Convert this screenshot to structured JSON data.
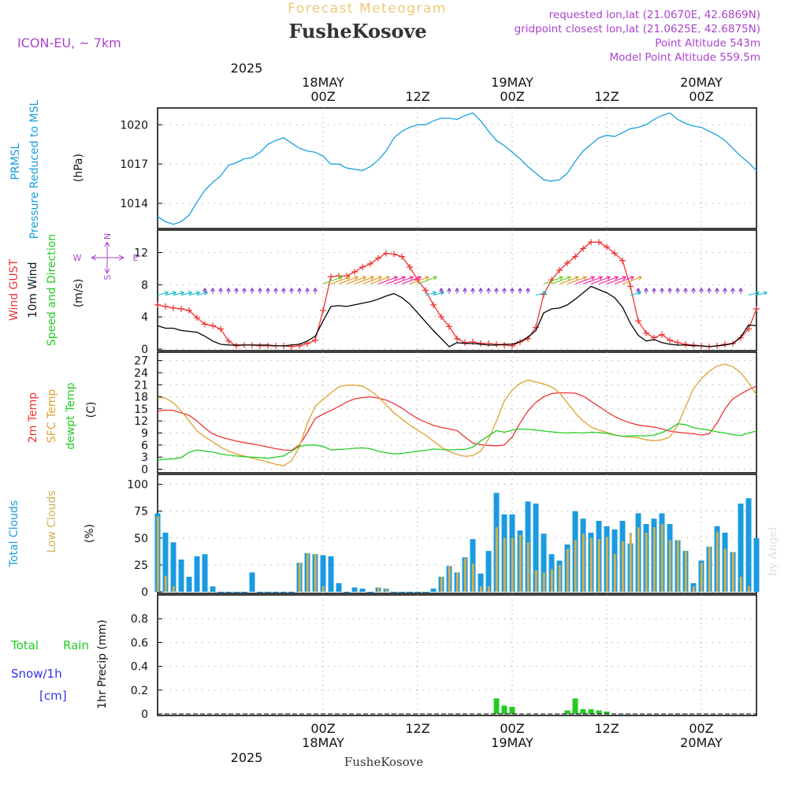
{
  "header": {
    "title": "Forecast Meteogram",
    "location": "FusheKosove",
    "model": "ICON-EU, ~ 7km",
    "requested": "requested lon,lat (21.0670E, 42.6869N)",
    "gridpoint": "gridpoint closest lon,lat (21.0625E, 42.6875N)",
    "point_altitude": "Point Altitude 543m",
    "model_altitude": "Model Point Altitude 559.5m",
    "credit": "by Angel",
    "footer": "FusheKosove"
  },
  "time_axis": {
    "year": "2025",
    "ticks": [
      {
        "hour": 21,
        "label": "00Z",
        "date": "18MAY"
      },
      {
        "hour": 33,
        "label": "12Z",
        "date": ""
      },
      {
        "hour": 45,
        "label": "00Z",
        "date": "19MAY"
      },
      {
        "hour": 57,
        "label": "12Z",
        "date": ""
      },
      {
        "hour": 69,
        "label": "00Z",
        "date": "20MAY"
      },
      {
        "hour": 81,
        "label": "12Z",
        "date": ""
      }
    ],
    "range": [
      0,
      76
    ]
  },
  "colors": {
    "pressure": "#1aa0e0",
    "gust": "#ee3333",
    "wind": "#000000",
    "temp2m": "#ee3333",
    "sfc": "#e0a030",
    "dewpt": "#22cc22",
    "total_cloud": "#1a9be0",
    "low_cloud": "#d0b050",
    "rain": "#22cc22",
    "snow": "#3333ee",
    "purple": "#aa44cc"
  },
  "chart_data": [
    {
      "type": "line",
      "name": "pressure",
      "label_lines": [
        "PRMSL",
        "Pressure Reduced to MSL"
      ],
      "unit": "(hPa)",
      "yticks": [
        1014,
        1017,
        1020
      ],
      "ylim": [
        1012.2,
        1021.1
      ],
      "series": [
        {
          "name": "PRMSL",
          "values": [
            1013.0,
            1012.6,
            1012.4,
            1012.6,
            1013.1,
            1014.1,
            1015.0,
            1015.6,
            1016.1,
            1016.9,
            1017.1,
            1017.4,
            1017.5,
            1017.9,
            1018.5,
            1018.8,
            1019.0,
            1018.6,
            1018.2,
            1018.0,
            1017.9,
            1017.6,
            1017.0,
            1017.0,
            1016.7,
            1016.6,
            1016.5,
            1016.8,
            1017.3,
            1018.0,
            1019.0,
            1019.5,
            1019.8,
            1020.0,
            1020.0,
            1020.3,
            1020.5,
            1020.5,
            1020.4,
            1020.7,
            1020.9,
            1020.3,
            1019.5,
            1018.8,
            1018.4,
            1017.9,
            1017.4,
            1016.8,
            1016.3,
            1015.8,
            1015.7,
            1015.8,
            1016.3,
            1017.2,
            1018.0,
            1018.5,
            1019.0,
            1019.2,
            1019.1,
            1019.4,
            1019.7,
            1019.8,
            1020.0,
            1020.4,
            1020.7,
            1020.9,
            1020.4,
            1020.1,
            1019.9,
            1019.8,
            1019.5,
            1019.2,
            1018.8,
            1018.2,
            1017.6,
            1017.1,
            1016.5,
            1016.1,
            1015.7,
            1015.6
          ]
        }
      ]
    },
    {
      "type": "line",
      "name": "wind",
      "label_lines": [
        "Wind GUST",
        "10m Wind",
        "Speed and Direction"
      ],
      "unit": "(m/s)",
      "compass": {
        "n": "N",
        "s": "S",
        "w": "W",
        "e": "E"
      },
      "yticks": [
        0,
        4,
        8,
        12
      ],
      "ylim": [
        0,
        14.5
      ],
      "series": [
        {
          "name": "Wind GUST",
          "values": [
            5.5,
            5.3,
            5.1,
            5.0,
            4.8,
            3.9,
            3.1,
            2.9,
            2.5,
            1.0,
            0.4,
            0.5,
            0.5,
            0.4,
            0.4,
            0.4,
            0.4,
            0.3,
            0.4,
            0.7,
            1.1,
            4.8,
            9.0,
            9.1,
            9.1,
            9.6,
            10.2,
            10.6,
            11.3,
            11.9,
            11.8,
            11.5,
            10.2,
            8.6,
            7.3,
            5.5,
            4.0,
            2.8,
            1.3,
            0.8,
            0.9,
            0.7,
            0.7,
            0.6,
            0.5,
            0.4,
            0.9,
            1.3,
            2.7,
            6.8,
            8.6,
            9.8,
            10.7,
            11.5,
            12.5,
            13.3,
            13.3,
            12.7,
            11.9,
            11.0,
            7.8,
            3.5,
            2.0,
            1.4,
            1.8,
            1.1,
            0.8,
            0.6,
            0.5,
            0.4,
            0.3,
            0.4,
            0.6,
            0.7,
            1.4,
            2.5,
            5.0,
            5.3,
            5.3,
            5.0,
            4.8
          ]
        },
        {
          "name": "10m Wind",
          "values": [
            2.9,
            2.6,
            2.6,
            2.3,
            2.2,
            2.1,
            1.6,
            1.0,
            0.6,
            0.5,
            0.5,
            0.5,
            0.5,
            0.5,
            0.5,
            0.4,
            0.4,
            0.5,
            0.6,
            1.0,
            1.6,
            3.5,
            5.3,
            5.4,
            5.3,
            5.5,
            5.7,
            5.9,
            6.2,
            6.6,
            6.9,
            6.4,
            5.6,
            4.5,
            3.4,
            2.3,
            1.3,
            0.3,
            0.8,
            0.7,
            0.7,
            0.6,
            0.5,
            0.5,
            0.6,
            0.6,
            0.9,
            1.5,
            2.3,
            4.5,
            5.0,
            5.1,
            5.5,
            6.2,
            7.0,
            7.8,
            7.4,
            7.0,
            6.4,
            5.2,
            3.2,
            1.7,
            1.0,
            1.2,
            0.8,
            0.6,
            0.5,
            0.5,
            0.4,
            0.4,
            0.3,
            0.4,
            0.5,
            0.7,
            1.5,
            3.0,
            2.9,
            2.4,
            2.6
          ]
        }
      ]
    },
    {
      "type": "line",
      "name": "temperature",
      "label_lines": [
        "2m Temp",
        "SFC Temp",
        "dewpt Temp"
      ],
      "unit": "(C)",
      "yticks": [
        0,
        3,
        6,
        9,
        12,
        15,
        18,
        21,
        24,
        27
      ],
      "ylim": [
        -0.5,
        28.5
      ],
      "series": [
        {
          "name": "2m Temp",
          "values": [
            14.4,
            14.7,
            14.6,
            14.0,
            13.4,
            12.0,
            10.2,
            8.8,
            8.0,
            7.5,
            7.0,
            6.6,
            6.3,
            5.9,
            5.5,
            5.1,
            4.8,
            4.7,
            6.0,
            9.1,
            12.6,
            13.7,
            14.6,
            15.6,
            16.7,
            17.5,
            17.8,
            18.0,
            17.7,
            17.2,
            16.3,
            15.2,
            13.8,
            12.6,
            11.7,
            10.9,
            10.4,
            10.0,
            9.6,
            8.0,
            6.5,
            6.1,
            5.9,
            5.8,
            6.0,
            8.0,
            11.5,
            14.5,
            16.6,
            18.0,
            18.8,
            19.0,
            19.0,
            18.9,
            18.2,
            16.9,
            15.6,
            14.3,
            13.1,
            12.2,
            11.5,
            11.0,
            10.7,
            10.5,
            10.0,
            9.5,
            9.2,
            9.0,
            8.8,
            8.5,
            8.8,
            11.5,
            15.0,
            17.5,
            18.7,
            19.8,
            20.7,
            21.6,
            22.0,
            21.7,
            20.3
          ]
        },
        {
          "name": "SFC Temp",
          "values": [
            17.8,
            17.7,
            16.5,
            14.5,
            12.0,
            9.5,
            8.0,
            6.8,
            5.5,
            4.5,
            3.8,
            3.3,
            2.8,
            2.3,
            1.8,
            1.2,
            0.9,
            2.1,
            5.5,
            11.5,
            15.6,
            17.4,
            19.0,
            20.5,
            20.9,
            20.9,
            20.7,
            19.5,
            18.0,
            16.0,
            14.0,
            12.5,
            11.0,
            9.7,
            8.5,
            7.0,
            5.5,
            4.4,
            3.7,
            3.2,
            3.4,
            4.5,
            7.5,
            12.0,
            17.0,
            19.7,
            21.3,
            22.2,
            21.7,
            21.2,
            20.5,
            19.0,
            16.5,
            14.0,
            12.0,
            10.5,
            9.7,
            9.2,
            8.5,
            8.2,
            8.0,
            7.8,
            7.3,
            7.1,
            7.3,
            8.0,
            11.0,
            15.5,
            20.0,
            22.5,
            24.3,
            25.7,
            26.1,
            25.5,
            24.0,
            21.5,
            18.5
          ]
        },
        {
          "name": "dewpt Temp",
          "values": [
            2.3,
            2.5,
            2.6,
            2.9,
            4.2,
            4.8,
            4.5,
            4.3,
            3.8,
            3.5,
            3.3,
            3.1,
            3.0,
            2.9,
            2.7,
            3.0,
            3.3,
            4.5,
            5.7,
            6.0,
            6.0,
            5.7,
            4.8,
            4.9,
            5.0,
            5.2,
            5.3,
            5.1,
            4.5,
            4.1,
            3.8,
            3.9,
            4.2,
            4.5,
            4.7,
            5.0,
            4.9,
            4.8,
            4.9,
            4.9,
            5.5,
            7.0,
            8.3,
            9.6,
            9.2,
            9.7,
            10.0,
            9.9,
            9.7,
            9.5,
            9.3,
            9.1,
            9.0,
            9.1,
            9.0,
            9.2,
            9.1,
            8.9,
            8.5,
            8.2,
            8.3,
            8.3,
            8.3,
            8.5,
            9.1,
            10.0,
            11.3,
            11.1,
            10.3,
            10.0,
            9.7,
            9.3,
            9.0,
            8.6,
            8.4,
            9.0,
            9.5,
            9.6
          ]
        }
      ]
    },
    {
      "type": "bar",
      "name": "clouds",
      "label_lines": [
        "Total Clouds",
        "Low Clouds"
      ],
      "unit": "(%)",
      "yticks": [
        0,
        25,
        50,
        75,
        100
      ],
      "ylim": [
        0,
        107
      ],
      "series": [
        {
          "name": "Total Clouds",
          "values": [
            73,
            55,
            46,
            30,
            14,
            33,
            35,
            5,
            0,
            0,
            0,
            0,
            18,
            0,
            0,
            0,
            0,
            0,
            27,
            36,
            35,
            34,
            33,
            8,
            0,
            4,
            3,
            0,
            4,
            3,
            0,
            0,
            0,
            0,
            0,
            3,
            14,
            24,
            18,
            32,
            49,
            17,
            38,
            92,
            72,
            72,
            57,
            84,
            82,
            54,
            35,
            29,
            44,
            75,
            68,
            55,
            66,
            61,
            58,
            66,
            45,
            73,
            63,
            68,
            73,
            63,
            48,
            38,
            8,
            29,
            42,
            61,
            55,
            37,
            82,
            87,
            50,
            59,
            67,
            100
          ]
        },
        {
          "name": "Low Clouds",
          "values": [
            70,
            15,
            5,
            0,
            0,
            0,
            0,
            0,
            0,
            0,
            0,
            0,
            0,
            0,
            0,
            0,
            0,
            0,
            27,
            36,
            35,
            5,
            0,
            0,
            0,
            0,
            0,
            0,
            4,
            3,
            0,
            0,
            0,
            0,
            0,
            0,
            14,
            24,
            18,
            31,
            26,
            5,
            5,
            60,
            50,
            50,
            53,
            46,
            20,
            18,
            21,
            25,
            40,
            48,
            54,
            50,
            49,
            51,
            35,
            47,
            55,
            60,
            55,
            60,
            63,
            48,
            48,
            38,
            5,
            27,
            42,
            56,
            40,
            37,
            14,
            5,
            0,
            0,
            0,
            0
          ]
        }
      ]
    },
    {
      "type": "bar",
      "name": "precip",
      "label_lines": [
        "Total",
        "Rain",
        "Snow/1h",
        "[cm]"
      ],
      "unit": "1hr Precip (mm)",
      "yticks": [
        0,
        0.2,
        0.4,
        0.6,
        0.8
      ],
      "ylim": [
        0,
        0.98
      ],
      "series": [
        {
          "name": "Total Rain",
          "values": [
            0,
            0,
            0,
            0,
            0,
            0,
            0,
            0,
            0,
            0,
            0,
            0,
            0,
            0,
            0,
            0,
            0,
            0,
            0,
            0,
            0,
            0,
            0,
            0,
            0,
            0,
            0,
            0,
            0,
            0,
            0,
            0,
            0,
            0,
            0,
            0,
            0,
            0,
            0,
            0,
            0,
            0,
            0,
            0.13,
            0.07,
            0.06,
            0,
            0,
            0,
            0,
            0,
            0,
            0.03,
            0.13,
            0.04,
            0.04,
            0.03,
            0.02,
            0,
            0,
            0,
            0,
            0,
            0,
            0,
            0,
            0,
            0,
            0,
            0,
            0,
            0,
            0,
            0,
            0,
            0,
            0
          ]
        }
      ]
    }
  ]
}
